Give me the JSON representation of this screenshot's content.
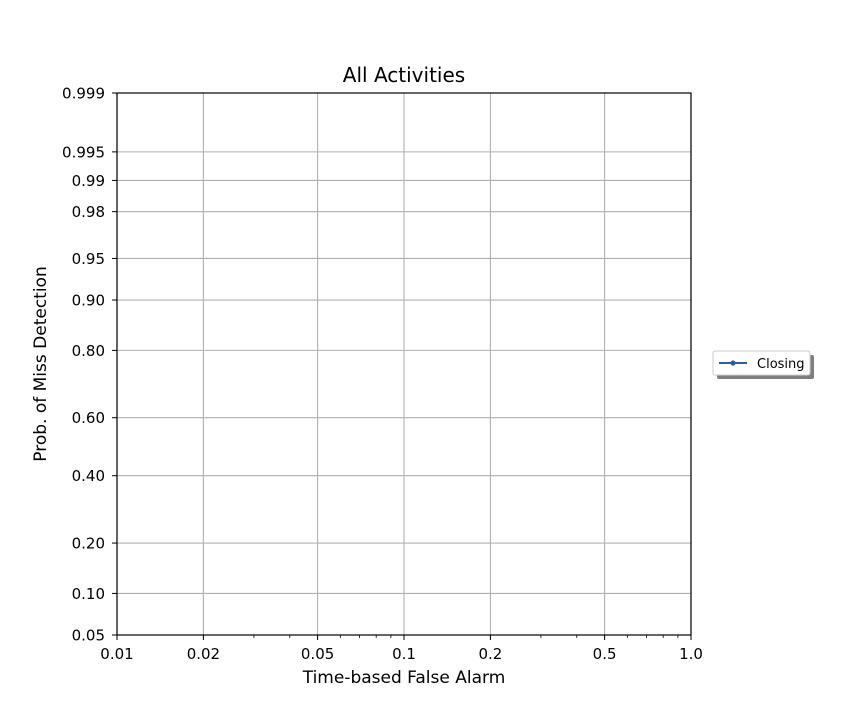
{
  "chart_data": {
    "type": "line",
    "title": "All Activities",
    "xlabel": "Time-based False Alarm",
    "ylabel": "Prob. of Miss Detection",
    "xscale": "log",
    "yscale": "normal-deviate",
    "xlim": [
      0.01,
      1.0
    ],
    "ylim": [
      0.05,
      0.999
    ],
    "xticks": [
      0.01,
      0.02,
      0.05,
      0.1,
      0.2,
      0.5,
      1.0
    ],
    "xtick_labels": [
      "0.01",
      "0.02",
      "0.05",
      "0.1",
      "0.2",
      "0.5",
      "1.0"
    ],
    "yticks": [
      0.05,
      0.1,
      0.2,
      0.4,
      0.6,
      0.8,
      0.9,
      0.95,
      0.98,
      0.99,
      0.995,
      0.999
    ],
    "ytick_labels": [
      "0.05",
      "0.10",
      "0.20",
      "0.40",
      "0.60",
      "0.80",
      "0.90",
      "0.95",
      "0.98",
      "0.99",
      "0.995",
      "0.999"
    ],
    "grid": true,
    "legend_position": "outside-right",
    "series": [
      {
        "name": "Closing",
        "color": "#2c5f9e",
        "x": [],
        "y": []
      }
    ]
  }
}
